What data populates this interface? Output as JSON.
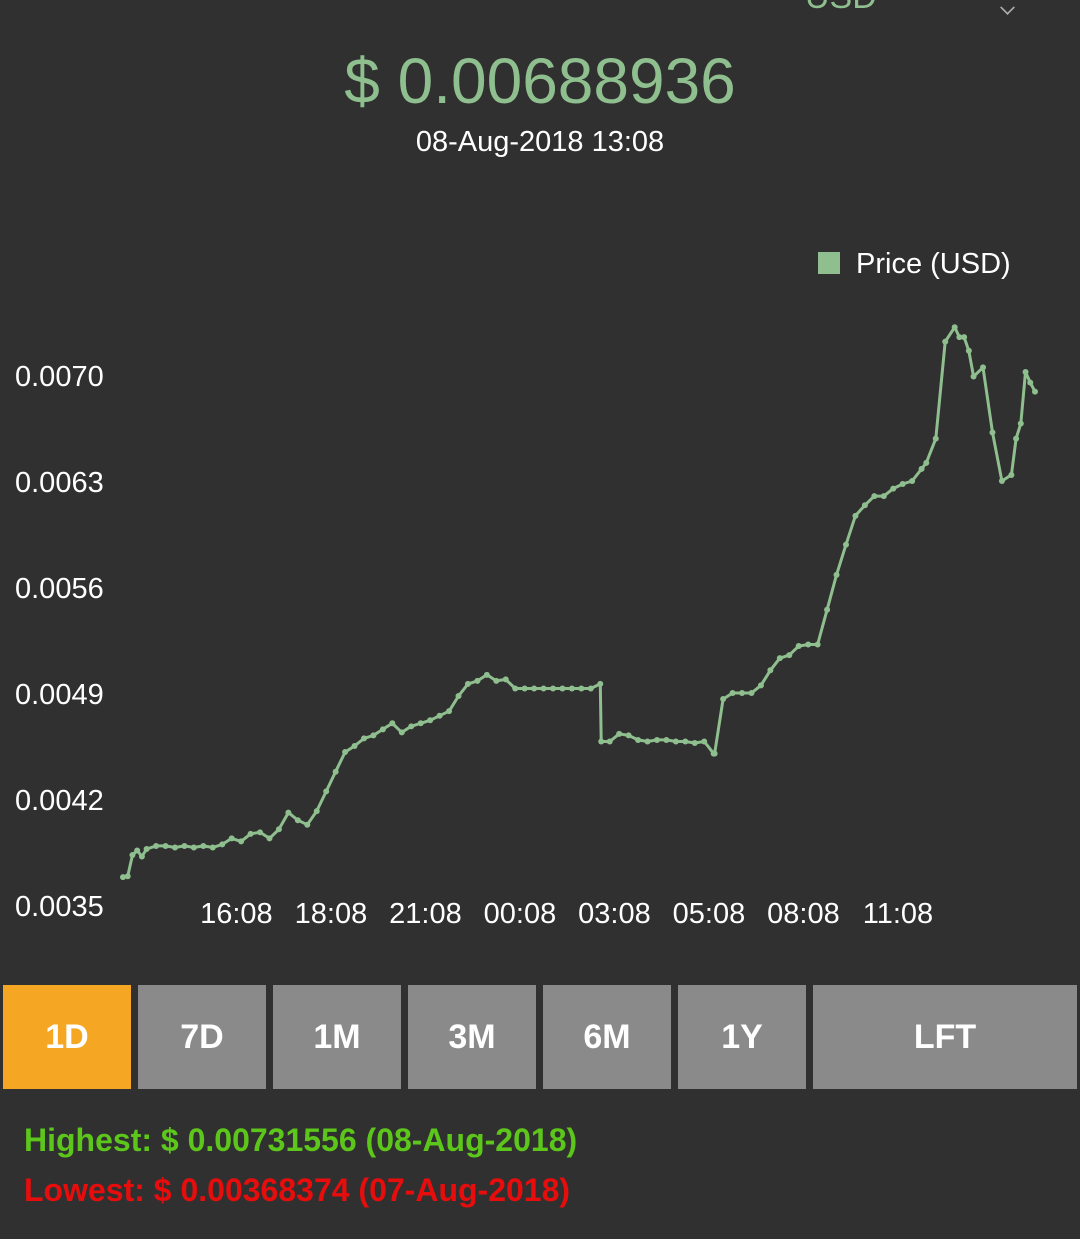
{
  "header": {
    "currency": "USD",
    "price": "$ 0.00688936",
    "timestamp": "08-Aug-2018 13:08"
  },
  "colors": {
    "line": "#8fbf8f",
    "active_range": "#f5a623",
    "range_button": "#8a8a8a",
    "highest": "#5dc61a",
    "lowest": "#e80d0d",
    "background": "#303030"
  },
  "chart_data": {
    "type": "line",
    "title": "",
    "xlabel": "",
    "ylabel": "",
    "legend": "top-right",
    "grid": false,
    "ylim": [
      0.0035,
      0.0072
    ],
    "yticks": [
      0.0035,
      0.0042,
      0.0049,
      0.0056,
      0.0063,
      0.007
    ],
    "ytick_labels": [
      "0.0035",
      "0.0042",
      "0.0049",
      "0.0056",
      "0.0063",
      "0.0070"
    ],
    "xtick_labels": [
      "16:08",
      "18:08",
      "21:08",
      "00:08",
      "03:08",
      "05:08",
      "08:08",
      "11:08"
    ],
    "xtick_hours": [
      2.4,
      4.4,
      6.4,
      8.4,
      10.4,
      12.4,
      14.4,
      16.4
    ],
    "series": [
      {
        "name": "Price (USD)",
        "x": [
          0,
          0.1,
          0.2,
          0.3,
          0.4,
          0.5,
          0.7,
          0.9,
          1.1,
          1.3,
          1.5,
          1.7,
          1.9,
          2.1,
          2.3,
          2.5,
          2.7,
          2.9,
          3.1,
          3.3,
          3.5,
          3.7,
          3.9,
          4.1,
          4.3,
          4.5,
          4.7,
          4.9,
          5.1,
          5.3,
          5.5,
          5.7,
          5.9,
          6.1,
          6.3,
          6.5,
          6.7,
          6.9,
          7.1,
          7.3,
          7.5,
          7.7,
          7.9,
          8.1,
          8.3,
          8.5,
          8.7,
          8.9,
          9.1,
          9.3,
          9.5,
          9.7,
          9.9,
          10.1,
          10.12,
          10.3,
          10.5,
          10.7,
          10.9,
          11.1,
          11.3,
          11.5,
          11.7,
          11.9,
          12.1,
          12.3,
          12.5,
          12.52,
          12.7,
          12.9,
          13.1,
          13.3,
          13.5,
          13.7,
          13.9,
          14.1,
          14.3,
          14.5,
          14.7,
          14.9,
          15.1,
          15.3,
          15.5,
          15.7,
          15.9,
          16.1,
          16.3,
          16.5,
          16.7,
          16.9,
          17.0,
          17.2,
          17.4,
          17.6,
          17.7,
          17.8,
          17.9,
          18.0,
          18.2,
          18.4,
          18.6,
          18.8,
          18.9,
          19.0,
          19.1,
          19.2,
          19.3
        ],
        "values": [
          0.00368374,
          0.00369,
          0.00383,
          0.00386,
          0.00382,
          0.00387,
          0.00389,
          0.00389,
          0.00388,
          0.00389,
          0.00388,
          0.00389,
          0.00388,
          0.0039,
          0.00394,
          0.00392,
          0.00397,
          0.00398,
          0.00394,
          0.004,
          0.00411,
          0.00406,
          0.00403,
          0.00412,
          0.00425,
          0.00438,
          0.00451,
          0.00455,
          0.0046,
          0.00462,
          0.00466,
          0.0047,
          0.00464,
          0.00468,
          0.0047,
          0.00472,
          0.00475,
          0.00478,
          0.00488,
          0.00496,
          0.00498,
          0.00502,
          0.00498,
          0.00499,
          0.00493,
          0.00493,
          0.00493,
          0.00493,
          0.00493,
          0.00493,
          0.00493,
          0.00493,
          0.00493,
          0.00496,
          0.00458,
          0.00458,
          0.00463,
          0.00462,
          0.00459,
          0.00458,
          0.00459,
          0.00459,
          0.00458,
          0.00458,
          0.00457,
          0.00458,
          0.0045,
          0.0045,
          0.00486,
          0.0049,
          0.0049,
          0.0049,
          0.00495,
          0.00505,
          0.00513,
          0.00515,
          0.00521,
          0.00522,
          0.00522,
          0.00545,
          0.00568,
          0.00588,
          0.00607,
          0.00614,
          0.0062,
          0.0062,
          0.00625,
          0.00628,
          0.0063,
          0.00638,
          0.00642,
          0.00658,
          0.00722,
          0.00731556,
          0.00725,
          0.00725,
          0.00716,
          0.00699,
          0.00705,
          0.00662,
          0.0063,
          0.00634,
          0.00658,
          0.00668,
          0.00702,
          0.00695,
          0.00689
        ]
      }
    ]
  },
  "ranges": [
    {
      "label": "1D",
      "active": true
    },
    {
      "label": "7D",
      "active": false
    },
    {
      "label": "1M",
      "active": false
    },
    {
      "label": "3M",
      "active": false
    },
    {
      "label": "6M",
      "active": false
    },
    {
      "label": "1Y",
      "active": false
    },
    {
      "label": "LFT",
      "active": false
    }
  ],
  "stats": {
    "highest": "Highest: $ 0.00731556 (08-Aug-2018)",
    "lowest": "Lowest: $ 0.00368374 (07-Aug-2018)"
  }
}
